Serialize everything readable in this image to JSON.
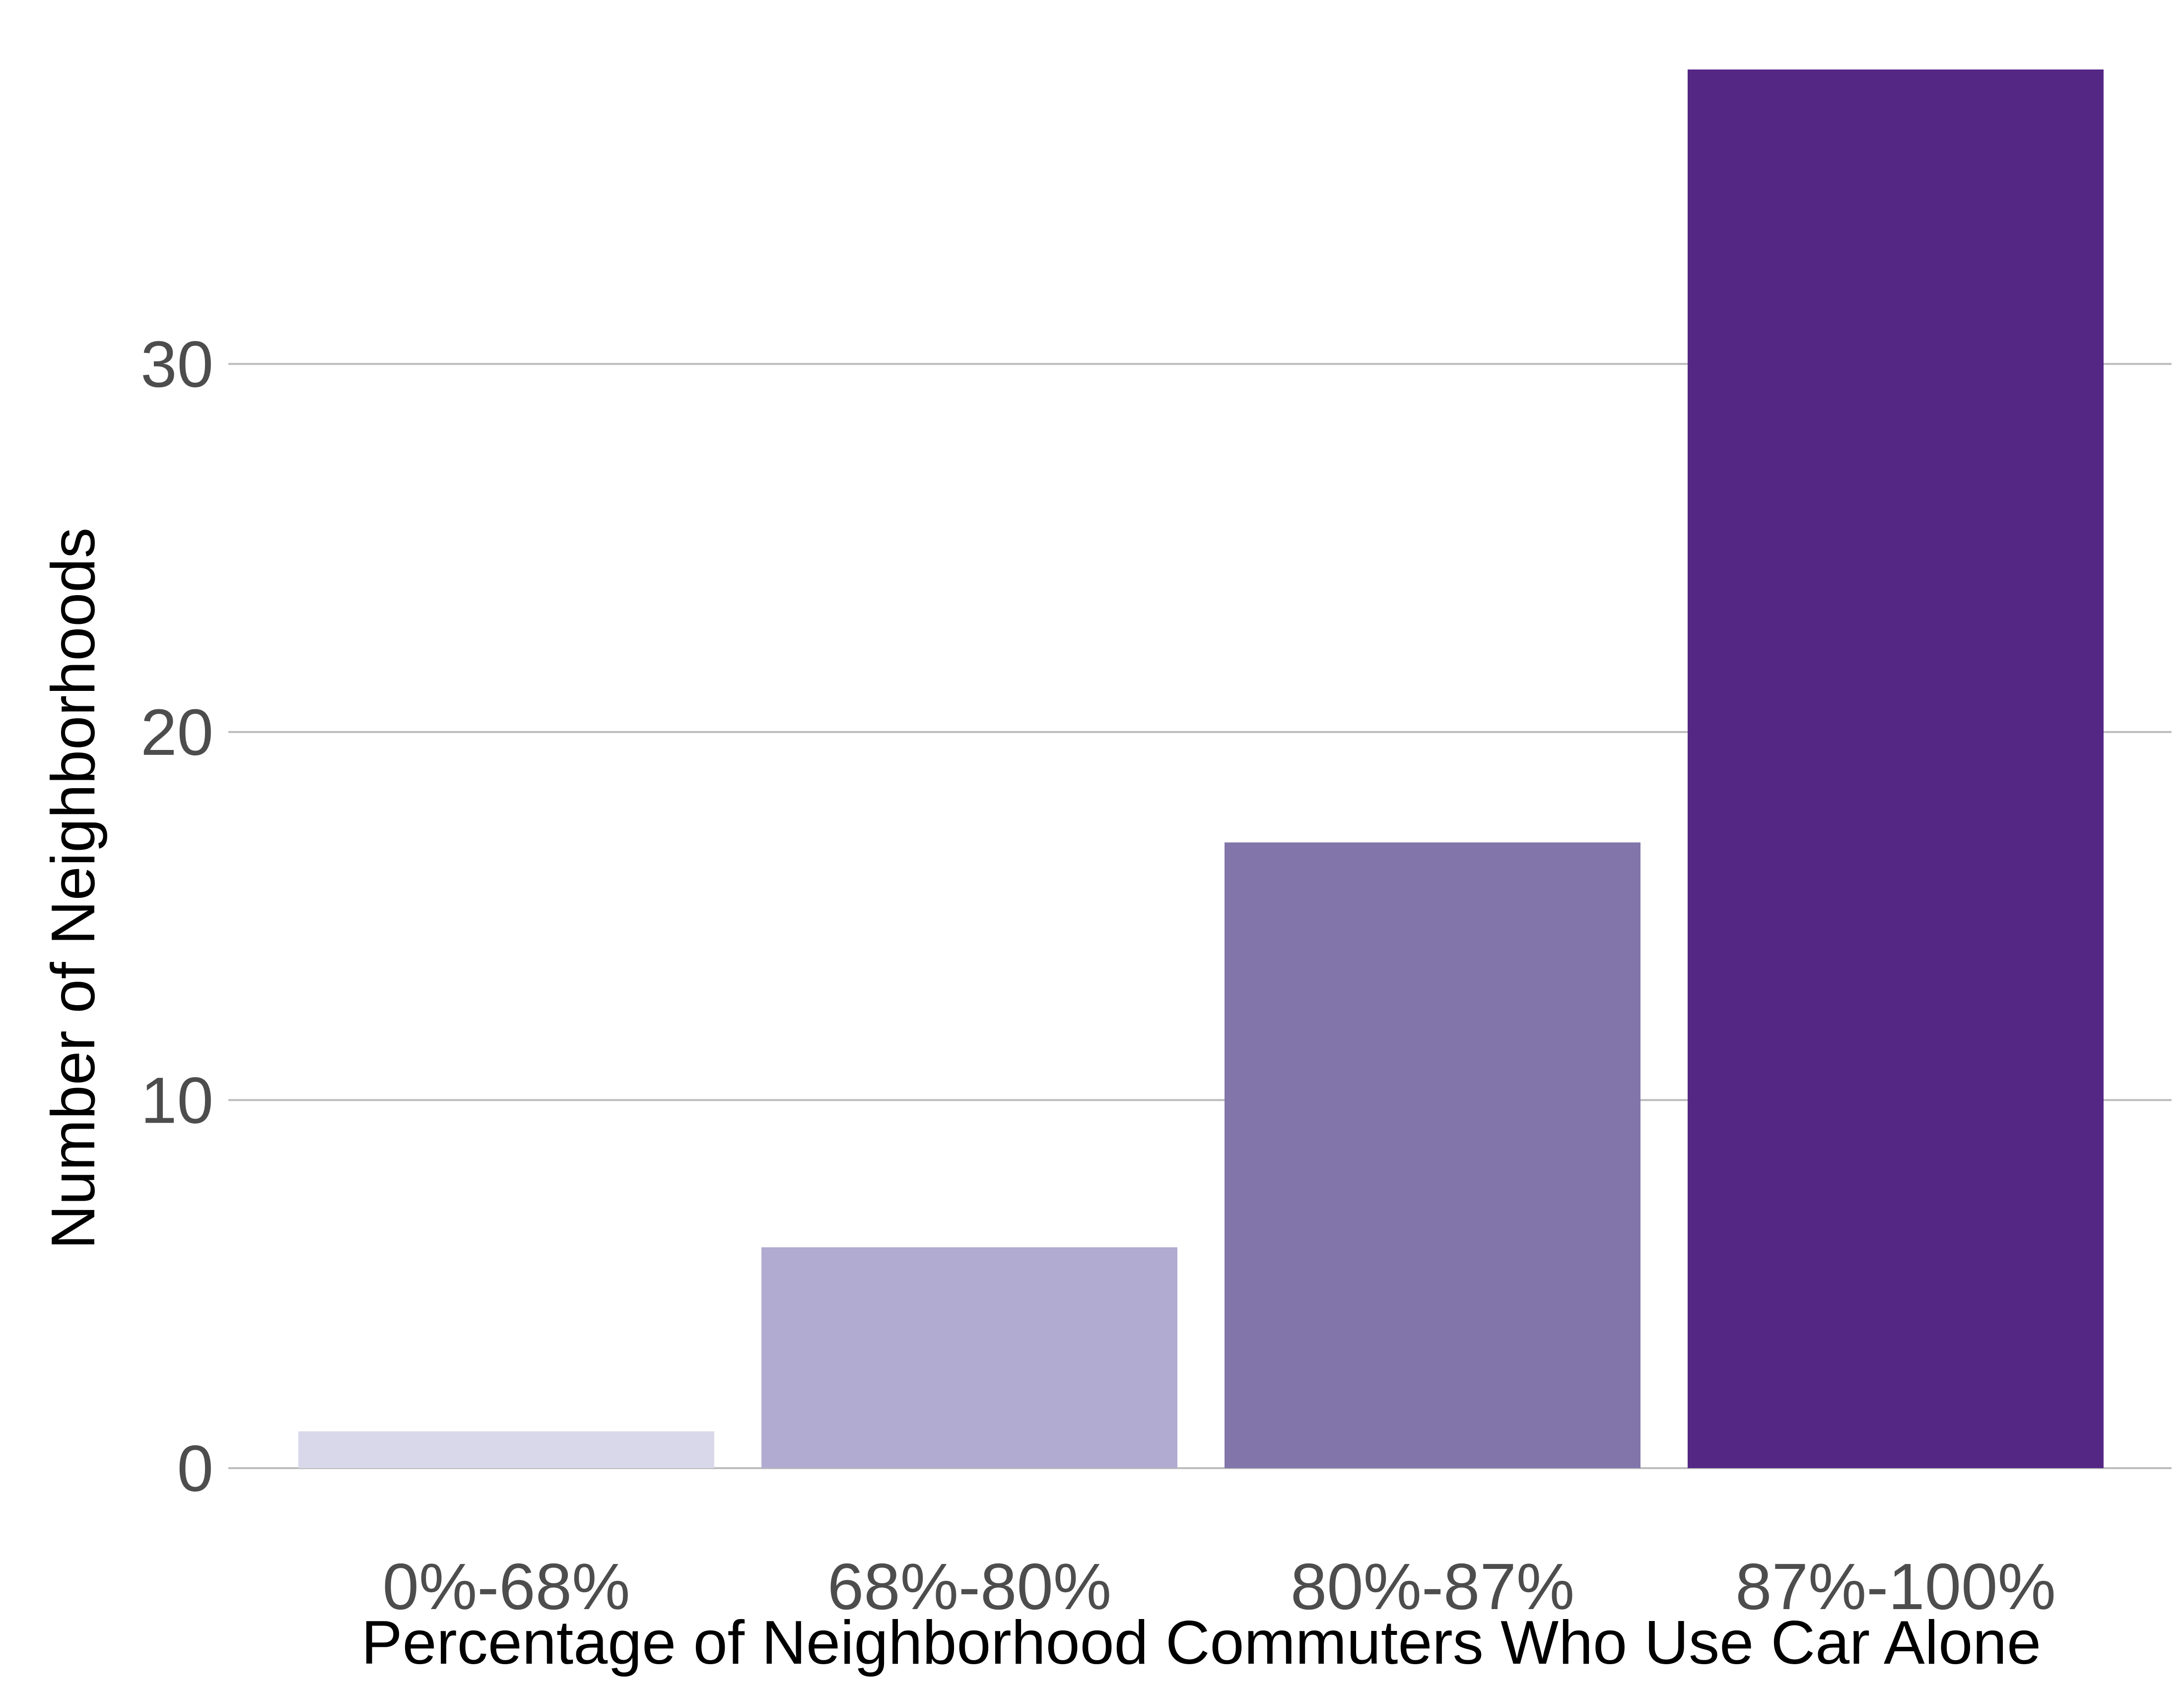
{
  "chart_data": {
    "type": "bar",
    "title": "",
    "xlabel": "Percentage of Neighborhood Commuters Who Use Car Alone",
    "ylabel": "Number of Neighborhoods",
    "categories": [
      "0%-68%",
      "68%-80%",
      "80%-87%",
      "87%-100%"
    ],
    "values": [
      1,
      6,
      17,
      38
    ],
    "colors": [
      "#d8d8ea",
      "#b1abd1",
      "#8175aa",
      "#552785"
    ],
    "yticks": [
      0,
      10,
      20,
      30
    ],
    "ylim": [
      0,
      38
    ],
    "grid": true,
    "legend": "none"
  }
}
